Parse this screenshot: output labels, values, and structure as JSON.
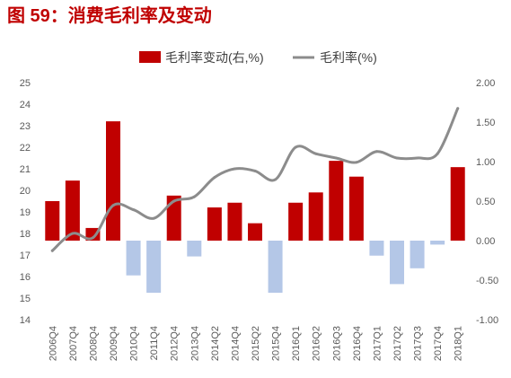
{
  "chart_data": {
    "type": "bar",
    "title": "图 59：消费毛利率及变动",
    "title_color": "#C00000",
    "categories": [
      "2006Q4",
      "2007Q4",
      "2008Q4",
      "2009Q4",
      "2010Q4",
      "2011Q4",
      "2012Q4",
      "2013Q4",
      "2014Q2",
      "2014Q4",
      "2015Q2",
      "2015Q4",
      "2016Q1",
      "2016Q2",
      "2016Q3",
      "2016Q4",
      "2017Q1",
      "2017Q2",
      "2017Q3",
      "2017Q4",
      "2018Q1"
    ],
    "series": [
      {
        "name": "毛利率变动(右,%)",
        "type": "bar",
        "y_axis": "right",
        "color": "#C00000",
        "negative_color": "#B4C7E7",
        "values": [
          0.5,
          0.76,
          0.16,
          1.51,
          -0.44,
          -0.66,
          0.57,
          -0.2,
          0.42,
          0.48,
          0.22,
          -0.66,
          0.48,
          0.61,
          1.01,
          0.81,
          -0.19,
          -0.55,
          -0.35,
          -0.05,
          0.93
        ]
      },
      {
        "name": "毛利率(%)",
        "type": "line",
        "y_axis": "left",
        "color": "#8C8C8C",
        "smooth": true,
        "values": [
          17.2,
          18.0,
          17.8,
          19.3,
          19.1,
          18.7,
          19.5,
          19.7,
          20.6,
          21.0,
          20.9,
          20.5,
          22.0,
          21.7,
          21.5,
          21.3,
          21.8,
          21.5,
          21.5,
          21.7,
          23.8
        ]
      }
    ],
    "ylim": [
      14,
      25
    ],
    "yticks": [
      "25",
      "24",
      "23",
      "22",
      "21",
      "20",
      "19",
      "18",
      "17",
      "16",
      "15",
      "14"
    ],
    "y2lim": [
      -1,
      2
    ],
    "y2ticks": [
      "2.00",
      "1.50",
      "1.00",
      "0.50",
      "0.00",
      "-0.50",
      "-1.00"
    ],
    "grid": false,
    "legend_placement": "top-center"
  }
}
